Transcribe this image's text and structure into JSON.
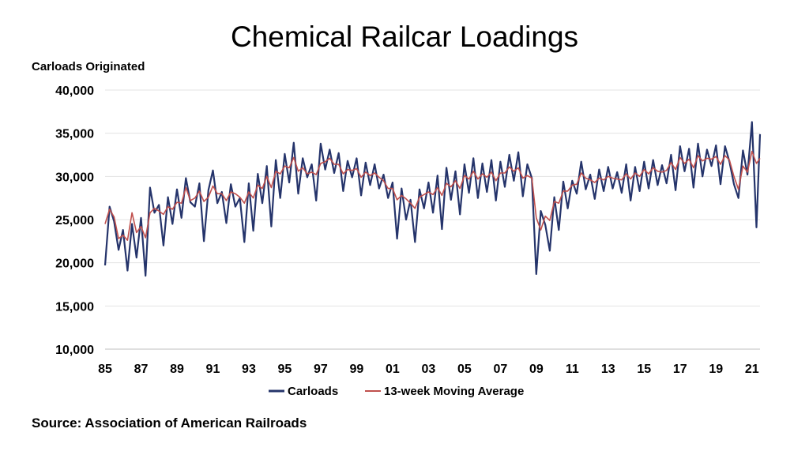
{
  "title": "Chemical Railcar Loadings",
  "source": "Source: Association of American Railroads",
  "chart_data": {
    "type": "line",
    "title": "Chemical Railcar Loadings",
    "ylabel": "Carloads Originated",
    "xlabel": "",
    "ylim": [
      10000,
      40000
    ],
    "xlim": [
      1985,
      2021.45
    ],
    "grid": "horizontal",
    "legend_position": "bottom",
    "y_ticks": [
      "10,000",
      "15,000",
      "20,000",
      "25,000",
      "30,000",
      "35,000",
      "40,000"
    ],
    "y_tick_values": [
      10000,
      15000,
      20000,
      25000,
      30000,
      35000,
      40000
    ],
    "x_ticks": [
      "85",
      "87",
      "89",
      "91",
      "93",
      "95",
      "97",
      "99",
      "01",
      "03",
      "05",
      "07",
      "09",
      "11",
      "13",
      "15",
      "17",
      "19",
      "21"
    ],
    "x_tick_values": [
      1985,
      1987,
      1989,
      1991,
      1993,
      1995,
      1997,
      1999,
      2001,
      2003,
      2005,
      2007,
      2009,
      2011,
      2013,
      2015,
      2017,
      2019,
      2021
    ],
    "series": [
      {
        "name": "Carloads",
        "color": "#25346b",
        "x": [
          1985.0,
          1985.25,
          1985.5,
          1985.75,
          1986.0,
          1986.25,
          1986.5,
          1986.75,
          1987.0,
          1987.25,
          1987.5,
          1987.75,
          1988.0,
          1988.25,
          1988.5,
          1988.75,
          1989.0,
          1989.25,
          1989.5,
          1989.75,
          1990.0,
          1990.25,
          1990.5,
          1990.75,
          1991.0,
          1991.25,
          1991.5,
          1991.75,
          1992.0,
          1992.25,
          1992.5,
          1992.75,
          1993.0,
          1993.25,
          1993.5,
          1993.75,
          1994.0,
          1994.25,
          1994.5,
          1994.75,
          1995.0,
          1995.25,
          1995.5,
          1995.75,
          1996.0,
          1996.25,
          1996.5,
          1996.75,
          1997.0,
          1997.25,
          1997.5,
          1997.75,
          1998.0,
          1998.25,
          1998.5,
          1998.75,
          1999.0,
          1999.25,
          1999.5,
          1999.75,
          2000.0,
          2000.25,
          2000.5,
          2000.75,
          2001.0,
          2001.25,
          2001.5,
          2001.75,
          2002.0,
          2002.25,
          2002.5,
          2002.75,
          2003.0,
          2003.25,
          2003.5,
          2003.75,
          2004.0,
          2004.25,
          2004.5,
          2004.75,
          2005.0,
          2005.25,
          2005.5,
          2005.75,
          2006.0,
          2006.25,
          2006.5,
          2006.75,
          2007.0,
          2007.25,
          2007.5,
          2007.75,
          2008.0,
          2008.25,
          2008.5,
          2008.75,
          2009.0,
          2009.25,
          2009.5,
          2009.75,
          2010.0,
          2010.25,
          2010.5,
          2010.75,
          2011.0,
          2011.25,
          2011.5,
          2011.75,
          2012.0,
          2012.25,
          2012.5,
          2012.75,
          2013.0,
          2013.25,
          2013.5,
          2013.75,
          2014.0,
          2014.25,
          2014.5,
          2014.75,
          2015.0,
          2015.25,
          2015.5,
          2015.75,
          2016.0,
          2016.25,
          2016.5,
          2016.75,
          2017.0,
          2017.25,
          2017.5,
          2017.75,
          2018.0,
          2018.25,
          2018.5,
          2018.75,
          2019.0,
          2019.25,
          2019.5,
          2019.75,
          2020.0,
          2020.25,
          2020.5,
          2020.75,
          2021.0,
          2021.25,
          2021.45
        ],
        "values": [
          19700,
          26500,
          24800,
          21500,
          23800,
          19100,
          24500,
          20600,
          25200,
          18500,
          28700,
          25800,
          26700,
          22000,
          27600,
          24500,
          28500,
          25200,
          29800,
          27000,
          26500,
          29200,
          22500,
          28400,
          30700,
          26900,
          28200,
          24600,
          29100,
          26500,
          27500,
          22400,
          29200,
          23700,
          30300,
          26900,
          31200,
          24200,
          31900,
          27500,
          32600,
          29300,
          33900,
          28000,
          32100,
          29900,
          31400,
          27200,
          33800,
          30800,
          33100,
          30400,
          32700,
          28300,
          31800,
          29900,
          32100,
          27800,
          31600,
          29000,
          31400,
          28600,
          30200,
          27500,
          29300,
          22800,
          28600,
          25000,
          27300,
          22400,
          28500,
          26300,
          29300,
          25800,
          30100,
          23900,
          31000,
          27300,
          30600,
          25600,
          31400,
          28100,
          32100,
          27500,
          31500,
          28200,
          31900,
          27200,
          31700,
          28800,
          32500,
          29500,
          32800,
          27700,
          31400,
          29800,
          18700,
          26000,
          24400,
          21400,
          27600,
          23800,
          29400,
          26300,
          29500,
          28000,
          31700,
          28500,
          30200,
          27400,
          30800,
          28300,
          31100,
          28600,
          30500,
          28100,
          31400,
          27200,
          31100,
          28300,
          31700,
          28600,
          31900,
          29000,
          31300,
          29200,
          32500,
          28400,
          33500,
          30600,
          33200,
          28700,
          33800,
          30000,
          33100,
          31200,
          33600,
          29100,
          33500,
          31700,
          29100,
          27500,
          33000,
          30200,
          36300,
          24100,
          34900
        ]
      },
      {
        "name": "13-week Moving Average",
        "color": "#c0504d",
        "x": [
          1985.0,
          1985.25,
          1985.5,
          1985.75,
          1986.0,
          1986.25,
          1986.5,
          1986.75,
          1987.0,
          1987.25,
          1987.5,
          1987.75,
          1988.0,
          1988.25,
          1988.5,
          1988.75,
          1989.0,
          1989.25,
          1989.5,
          1989.75,
          1990.0,
          1990.25,
          1990.5,
          1990.75,
          1991.0,
          1991.25,
          1991.5,
          1991.75,
          1992.0,
          1992.25,
          1992.5,
          1992.75,
          1993.0,
          1993.25,
          1993.5,
          1993.75,
          1994.0,
          1994.25,
          1994.5,
          1994.75,
          1995.0,
          1995.25,
          1995.5,
          1995.75,
          1996.0,
          1996.25,
          1996.5,
          1996.75,
          1997.0,
          1997.25,
          1997.5,
          1997.75,
          1998.0,
          1998.25,
          1998.5,
          1998.75,
          1999.0,
          1999.25,
          1999.5,
          1999.75,
          2000.0,
          2000.25,
          2000.5,
          2000.75,
          2001.0,
          2001.25,
          2001.5,
          2001.75,
          2002.0,
          2002.25,
          2002.5,
          2002.75,
          2003.0,
          2003.25,
          2003.5,
          2003.75,
          2004.0,
          2004.25,
          2004.5,
          2004.75,
          2005.0,
          2005.25,
          2005.5,
          2005.75,
          2006.0,
          2006.25,
          2006.5,
          2006.75,
          2007.0,
          2007.25,
          2007.5,
          2007.75,
          2008.0,
          2008.25,
          2008.5,
          2008.75,
          2009.0,
          2009.25,
          2009.5,
          2009.75,
          2010.0,
          2010.25,
          2010.5,
          2010.75,
          2011.0,
          2011.25,
          2011.5,
          2011.75,
          2012.0,
          2012.25,
          2012.5,
          2012.75,
          2013.0,
          2013.25,
          2013.5,
          2013.75,
          2014.0,
          2014.25,
          2014.5,
          2014.75,
          2015.0,
          2015.25,
          2015.5,
          2015.75,
          2016.0,
          2016.25,
          2016.5,
          2016.75,
          2017.0,
          2017.25,
          2017.5,
          2017.75,
          2018.0,
          2018.25,
          2018.5,
          2018.75,
          2019.0,
          2019.25,
          2019.5,
          2019.75,
          2020.0,
          2020.25,
          2020.5,
          2020.75,
          2021.0,
          2021.25,
          2021.45
        ],
        "values": [
          24500,
          26200,
          25300,
          22800,
          23200,
          22600,
          25800,
          23500,
          24200,
          22900,
          25800,
          26300,
          26000,
          25600,
          26500,
          26200,
          27000,
          26900,
          28700,
          27200,
          27500,
          28300,
          27100,
          27600,
          28900,
          28000,
          28000,
          27200,
          28200,
          28000,
          27600,
          26900,
          28200,
          27500,
          29000,
          28600,
          30000,
          28700,
          30600,
          30300,
          31200,
          31000,
          32200,
          30600,
          31000,
          30300,
          30500,
          30200,
          31500,
          31700,
          32100,
          31400,
          31400,
          30300,
          30800,
          30700,
          30900,
          29900,
          30500,
          30100,
          30400,
          29900,
          29500,
          28600,
          28600,
          27300,
          27800,
          27400,
          26900,
          26300,
          27600,
          27900,
          28200,
          27900,
          28700,
          27800,
          29200,
          28800,
          29500,
          28600,
          30100,
          29700,
          30600,
          29700,
          30300,
          29900,
          30500,
          29500,
          30400,
          30400,
          31100,
          30600,
          31000,
          29800,
          30100,
          29800,
          25200,
          23800,
          25400,
          24900,
          27100,
          26900,
          28300,
          28300,
          29000,
          29100,
          30400,
          29800,
          29600,
          29300,
          29800,
          29600,
          30000,
          29800,
          29700,
          29600,
          30300,
          29700,
          30400,
          30000,
          30800,
          30300,
          31000,
          30600,
          30500,
          30700,
          31600,
          30800,
          32200,
          31500,
          32000,
          31000,
          32400,
          31800,
          32100,
          32000,
          32300,
          31400,
          32400,
          31900,
          30000,
          28500,
          31200,
          30500,
          32900,
          31500,
          32100
        ]
      }
    ]
  }
}
